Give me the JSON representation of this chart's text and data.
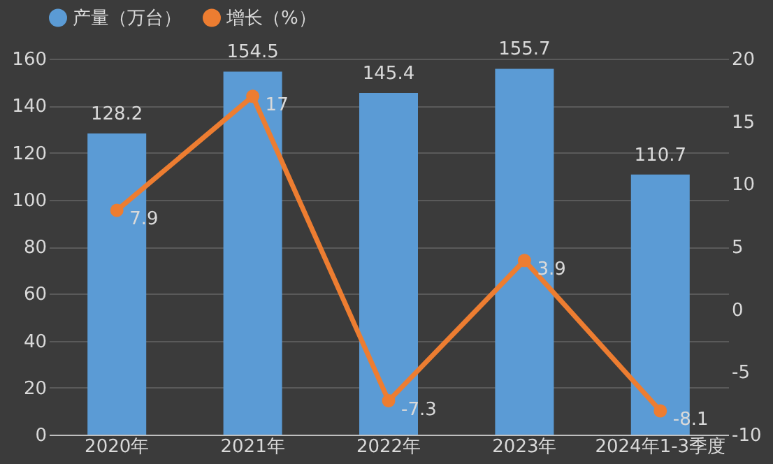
{
  "chart_data": {
    "type": "bar",
    "categories": [
      "2020年",
      "2021年",
      "2022年",
      "2023年",
      "2024年1-3季度"
    ],
    "series": [
      {
        "name": "产量（万台）",
        "color": "#5b9bd5",
        "values": [
          128.2,
          154.5,
          145.4,
          155.7,
          110.7
        ]
      },
      {
        "name": "增长（%）",
        "type": "line",
        "axis": "y2",
        "color": "#ed7d31",
        "values": [
          7.9,
          17,
          -7.3,
          3.9,
          -8.1
        ]
      }
    ],
    "ylim": [
      0,
      160
    ],
    "yticks": [
      0,
      20,
      40,
      60,
      80,
      100,
      120,
      140,
      160
    ],
    "y2lim": [
      -10,
      20
    ],
    "y2ticks": [
      -10,
      -5,
      0,
      5,
      10,
      15,
      20
    ],
    "grid": "y",
    "legend": "top",
    "marker": "circle",
    "line_style": "solid",
    "data_labels": true
  }
}
